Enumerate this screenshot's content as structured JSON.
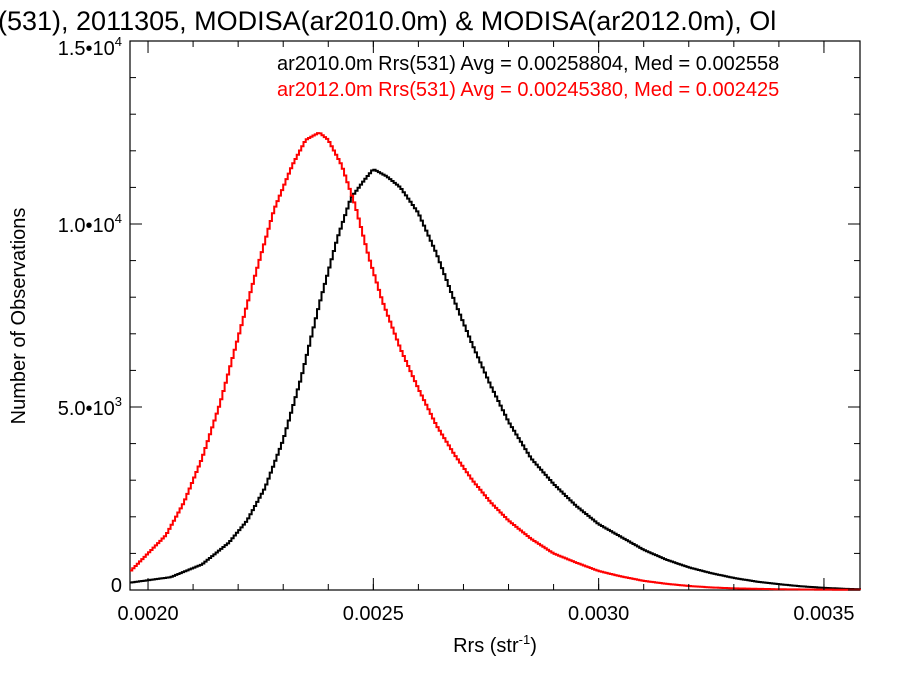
{
  "chart_data": {
    "type": "line",
    "title": "(531), 2011305, MODISA(ar2010.0m) & MODISA(ar2012.0m), Ol",
    "xlabel": "Rrs (str",
    "xlabel_sup": "-1",
    "xlabel_close": ")",
    "ylabel": "Number of Observations",
    "xlim": [
      0.00196,
      0.00358
    ],
    "ylim": [
      0,
      15000
    ],
    "x_ticks": [
      {
        "value": 0.002,
        "label": "0.0020"
      },
      {
        "value": 0.0025,
        "label": "0.0025"
      },
      {
        "value": 0.003,
        "label": "0.0030"
      },
      {
        "value": 0.0035,
        "label": "0.0035"
      }
    ],
    "y_ticks": [
      {
        "value": 0,
        "mant": "0",
        "exp": ""
      },
      {
        "value": 5000,
        "mant": "5.0•10",
        "exp": "3"
      },
      {
        "value": 10000,
        "mant": "1.0•10",
        "exp": "4"
      },
      {
        "value": 15000,
        "mant": "1.5•10",
        "exp": "4"
      }
    ],
    "grid": false,
    "legend_position": "top-right",
    "series": [
      {
        "legend": "ar2010.0m Rrs(531) Avg = 0.00258804, Med = 0.002558",
        "color": "#000000",
        "x": [
          0.00196,
          0.00205,
          0.00212,
          0.00218,
          0.00222,
          0.00226,
          0.0023,
          0.00234,
          0.00238,
          0.00242,
          0.00245,
          0.00248,
          0.0025,
          0.00253,
          0.00256,
          0.0026,
          0.00264,
          0.00268,
          0.00272,
          0.00276,
          0.0028,
          0.00285,
          0.0029,
          0.00295,
          0.003,
          0.00305,
          0.0031,
          0.00315,
          0.0032,
          0.00325,
          0.0033,
          0.00335,
          0.0034,
          0.00345,
          0.0035,
          0.00355,
          0.00358
        ],
        "y": [
          200,
          350,
          700,
          1300,
          1900,
          2800,
          4100,
          5800,
          7800,
          9600,
          10700,
          11200,
          11500,
          11300,
          11000,
          10300,
          9200,
          7900,
          6700,
          5600,
          4600,
          3600,
          2900,
          2300,
          1800,
          1450,
          1100,
          830,
          620,
          460,
          330,
          230,
          160,
          100,
          60,
          30,
          20
        ]
      },
      {
        "legend": "ar2012.0m Rrs(531) Avg = 0.00245380, Med = 0.002425",
        "color": "#ff0000",
        "x": [
          0.00196,
          0.002,
          0.00204,
          0.00208,
          0.00212,
          0.00216,
          0.0022,
          0.00224,
          0.00228,
          0.00232,
          0.00235,
          0.00238,
          0.0024,
          0.00243,
          0.00246,
          0.00249,
          0.00252,
          0.00256,
          0.0026,
          0.00264,
          0.00268,
          0.00272,
          0.00276,
          0.0028,
          0.00285,
          0.0029,
          0.00295,
          0.003,
          0.00305,
          0.0031,
          0.00315,
          0.0032,
          0.00325,
          0.0033,
          0.0034,
          0.0035,
          0.00358
        ],
        "y": [
          500,
          1000,
          1500,
          2400,
          3600,
          5100,
          6900,
          8700,
          10400,
          11600,
          12300,
          12500,
          12300,
          11600,
          10500,
          9100,
          7900,
          6600,
          5500,
          4500,
          3700,
          3000,
          2400,
          1900,
          1400,
          1000,
          750,
          520,
          370,
          250,
          170,
          110,
          70,
          45,
          20,
          10,
          5
        ]
      }
    ]
  }
}
